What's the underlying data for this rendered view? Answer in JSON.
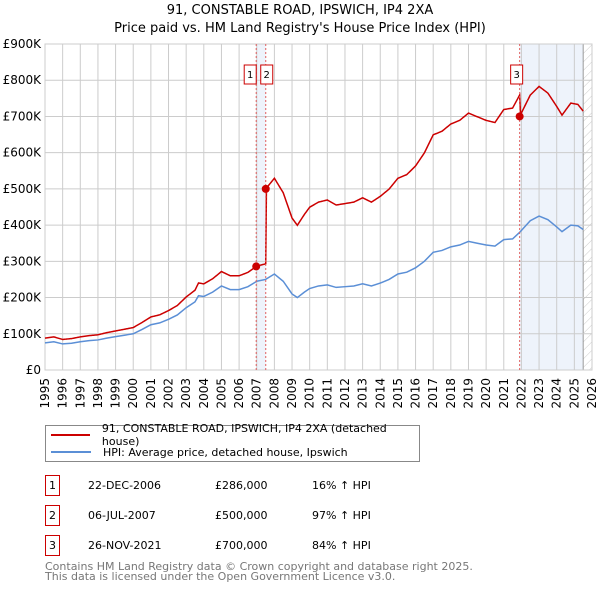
{
  "chart_data": {
    "type": "line",
    "title": "91, CONSTABLE ROAD, IPSWICH, IP4 2XA",
    "subtitle": "Price paid vs. HM Land Registry's House Price Index (HPI)",
    "xlim": [
      1995,
      2026
    ],
    "ylim": [
      0,
      900000
    ],
    "x_ticks": [
      "1995",
      "1996",
      "1997",
      "1998",
      "1999",
      "2000",
      "2001",
      "2002",
      "2003",
      "2004",
      "2005",
      "2006",
      "2007",
      "2008",
      "2009",
      "2010",
      "2011",
      "2012",
      "2013",
      "2014",
      "2015",
      "2016",
      "2017",
      "2018",
      "2019",
      "2020",
      "2021",
      "2022",
      "2023",
      "2024",
      "2025",
      "2026"
    ],
    "y_ticks": [
      "£0",
      "£100K",
      "£200K",
      "£300K",
      "£400K",
      "£500K",
      "£600K",
      "£700K",
      "£800K",
      "£900K"
    ],
    "grid": true,
    "series": [
      {
        "name": "91, CONSTABLE ROAD, IPSWICH, IP4 2XA (detached house)",
        "color": "#cc0000"
      },
      {
        "name": "HPI: Average price, detached house, Ipswich",
        "color": "#5b8fd6",
        "x": [
          1995,
          1995.5,
          1996,
          1996.5,
          1997,
          1997.5,
          1998,
          1998.5,
          1999,
          1999.5,
          2000,
          2000.5,
          2001,
          2001.5,
          2002,
          2002.5,
          2003,
          2003.5,
          2003.7,
          2004,
          2004.5,
          2005,
          2005.5,
          2006,
          2006.5,
          2007,
          2007.5,
          2008,
          2008.5,
          2009,
          2009.3,
          2009.7,
          2010,
          2010.5,
          2011,
          2011.5,
          2012,
          2012.5,
          2013,
          2013.5,
          2014,
          2014.5,
          2015,
          2015.5,
          2016,
          2016.5,
          2017,
          2017.5,
          2018,
          2018.5,
          2019,
          2019.5,
          2020,
          2020.5,
          2021,
          2021.5,
          2021.9,
          2022.5,
          2023,
          2023.5,
          2024,
          2024.3,
          2024.8,
          2025.2,
          2025.5
        ],
        "y": [
          75000,
          78000,
          72000,
          74000,
          78000,
          81000,
          83000,
          88000,
          92000,
          96000,
          100000,
          112000,
          125000,
          130000,
          140000,
          152000,
          172000,
          188000,
          205000,
          203000,
          215000,
          232000,
          222000,
          222000,
          230000,
          245000,
          250000,
          265000,
          245000,
          210000,
          200000,
          215000,
          225000,
          232000,
          235000,
          228000,
          230000,
          232000,
          238000,
          232000,
          240000,
          250000,
          265000,
          270000,
          282000,
          300000,
          325000,
          330000,
          340000,
          345000,
          355000,
          350000,
          345000,
          342000,
          360000,
          362000,
          380000,
          412000,
          425000,
          415000,
          395000,
          382000,
          400000,
          398000,
          388000
        ]
      }
    ],
    "sales": [
      {
        "num": "1",
        "x": 2006.97,
        "price": 286000,
        "date": "22-DEC-2006",
        "price_label": "£286,000",
        "hpi": "16% ↑ HPI"
      },
      {
        "num": "2",
        "x": 2007.51,
        "price": 500000,
        "date": "06-JUL-2007",
        "price_label": "£500,000",
        "hpi": "97% ↑ HPI"
      },
      {
        "num": "3",
        "x": 2021.9,
        "price": 700000,
        "date": "26-NOV-2021",
        "price_label": "£700,000",
        "hpi": "84% ↑ HPI"
      }
    ]
  },
  "footer": {
    "line1": "Contains HM Land Registry data © Crown copyright and database right 2025.",
    "line2": "This data is licensed under the Open Government Licence v3.0."
  }
}
